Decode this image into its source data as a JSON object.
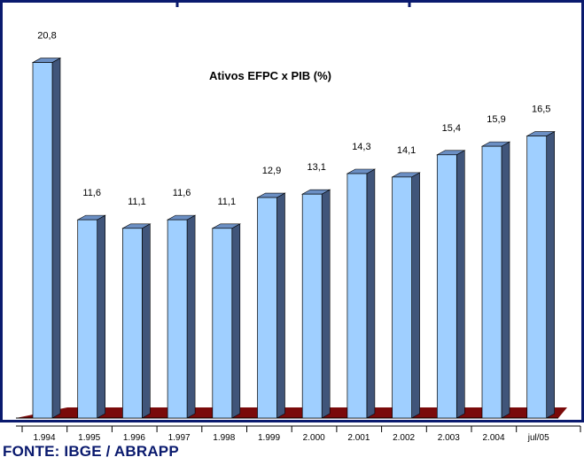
{
  "chart_data": {
    "type": "bar",
    "title": "Ativos EFPC x PIB (%)",
    "categories": [
      "1.994",
      "1.995",
      "1.996",
      "1.997",
      "1.998",
      "1.999",
      "2.000",
      "2.001",
      "2.002",
      "2.003",
      "2.004",
      "jul/05"
    ],
    "values": [
      20.8,
      11.6,
      11.1,
      11.6,
      11.1,
      12.9,
      13.1,
      14.3,
      14.1,
      15.4,
      15.9,
      16.5
    ],
    "value_labels": [
      "20,8",
      "11,6",
      "11,1",
      "11,6",
      "11,1",
      "12,9",
      "13,1",
      "14,3",
      "14,1",
      "15,4",
      "15,9",
      "16,5"
    ],
    "style": "3d-bar",
    "grid": false,
    "legend": "none",
    "colors": {
      "bar_front": "#9fcfff",
      "bar_top": "#6b8fc4",
      "bar_side": "#40557a",
      "floor": "#7a0a0a",
      "frame": "#0a1a6e"
    }
  },
  "footer": {
    "source": "FONTE: IBGE / ABRAPP"
  }
}
